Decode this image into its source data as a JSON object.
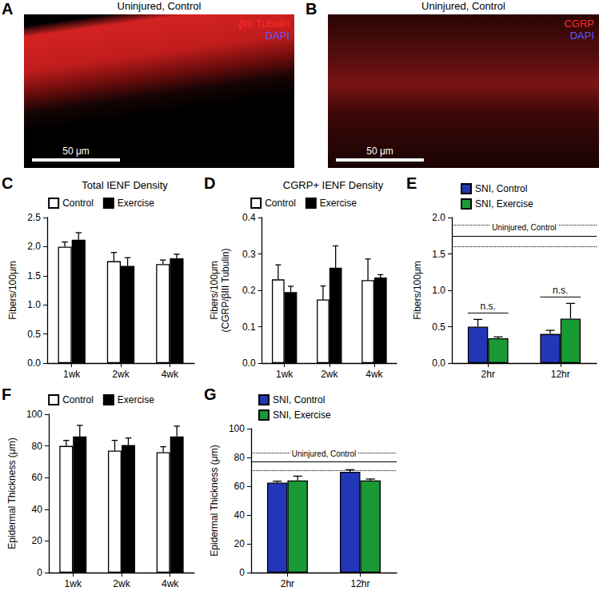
{
  "images": [
    {
      "panel": "A",
      "title": "Uninjured, Control",
      "channels": [
        {
          "label": "βIII Tubulin",
          "color": "#ff2a2a"
        },
        {
          "label": "DAPI",
          "color": "#5a5aff"
        }
      ],
      "scale_bar": "50 μm"
    },
    {
      "panel": "B",
      "title": "Uninjured, Control",
      "channels": [
        {
          "label": "CGRP",
          "color": "#ff2a2a"
        },
        {
          "label": "DAPI",
          "color": "#5a5aff"
        }
      ],
      "scale_bar": "50 μm"
    }
  ],
  "chart_data": [
    {
      "panel": "C",
      "type": "bar",
      "title": "Total IENF Density",
      "ylabel": "Fibers/100μm",
      "categories": [
        "1wk",
        "2wk",
        "4wk"
      ],
      "series": [
        {
          "name": "Control",
          "color": "#ffffff",
          "values": [
            2.0,
            1.75,
            1.7
          ],
          "errors": [
            0.08,
            0.15,
            0.07
          ]
        },
        {
          "name": "Exercise",
          "color": "#000000",
          "values": [
            2.12,
            1.67,
            1.8
          ],
          "errors": [
            0.12,
            0.14,
            0.07
          ]
        }
      ],
      "ylim": [
        0,
        2.5
      ],
      "yticks": [
        {
          "value": 0,
          "label": "0.0"
        },
        0.5,
        {
          "value": 1,
          "label": "1.0"
        },
        1.5,
        {
          "value": 2,
          "label": "2.0"
        },
        2.5
      ],
      "grid": false,
      "legend": "top"
    },
    {
      "panel": "D",
      "type": "bar",
      "title": "CGRP+ IENF Density",
      "ylabel": [
        "Fibers/100μm",
        "(CGRP/βIII Tubulin)"
      ],
      "categories": [
        "1wk",
        "2wk",
        "4wk"
      ],
      "series": [
        {
          "name": "Control",
          "color": "#ffffff",
          "values": [
            0.23,
            0.175,
            0.228
          ],
          "errors": [
            0.04,
            0.037,
            0.058
          ]
        },
        {
          "name": "Exercise",
          "color": "#000000",
          "values": [
            0.195,
            0.262,
            0.235
          ],
          "errors": [
            0.016,
            0.06,
            0.008
          ]
        }
      ],
      "ylim": [
        0,
        0.4
      ],
      "yticks": [
        {
          "value": 0,
          "label": "0.0"
        },
        0.1,
        0.2,
        0.3,
        0.4
      ],
      "grid": false,
      "legend": "top"
    },
    {
      "panel": "E",
      "type": "bar",
      "ylabel": "Fibers/100μm",
      "categories": [
        "2hr",
        "12hr"
      ],
      "series": [
        {
          "name": "SNI, Control",
          "color": "#2236b8",
          "values": [
            0.5,
            0.4
          ],
          "errors": [
            0.1,
            0.05
          ]
        },
        {
          "name": "SNI, Exercise",
          "color": "#1a9a34",
          "values": [
            0.34,
            0.61
          ],
          "errors": [
            0.02,
            0.21
          ]
        }
      ],
      "reference": {
        "label": "Uninjured, Control",
        "value": 1.75,
        "lower": 1.6,
        "upper": 1.9
      },
      "annotations": [
        {
          "category": "2hr",
          "text": "n.s."
        },
        {
          "category": "12hr",
          "text": "n.s."
        }
      ],
      "ylim": [
        0,
        2.0
      ],
      "yticks": [
        {
          "value": 0,
          "label": "0.0"
        },
        0.5,
        {
          "value": 1,
          "label": "1.0"
        },
        1.5,
        {
          "value": 2,
          "label": "2.0"
        }
      ],
      "grid": false,
      "legend": "top left"
    },
    {
      "panel": "F",
      "type": "bar",
      "ylabel": "Epidermal Thickness (μm)",
      "categories": [
        "1wk",
        "2wk",
        "4wk"
      ],
      "series": [
        {
          "name": "Control",
          "color": "#ffffff",
          "values": [
            80,
            77,
            76
          ],
          "errors": [
            3.5,
            6.5,
            3.5
          ]
        },
        {
          "name": "Exercise",
          "color": "#000000",
          "values": [
            86,
            80.5,
            86
          ],
          "errors": [
            7,
            4.5,
            6.5
          ]
        }
      ],
      "ylim": [
        0,
        100
      ],
      "yticks": [
        0,
        20,
        40,
        60,
        80,
        100
      ],
      "grid": false,
      "legend": "top"
    },
    {
      "panel": "G",
      "type": "bar",
      "ylabel": "Epidermal Thickness (μm)",
      "categories": [
        "2hr",
        "12hr"
      ],
      "series": [
        {
          "name": "SNI, Control",
          "color": "#2236b8",
          "values": [
            62.5,
            70
          ],
          "errors": [
            1,
            1.5
          ]
        },
        {
          "name": "SNI, Exercise",
          "color": "#1a9a34",
          "values": [
            64,
            64
          ],
          "errors": [
            3,
            1
          ]
        }
      ],
      "reference": {
        "label": "Uninjured, Control",
        "value": 77,
        "lower": 71,
        "upper": 83
      },
      "ylim": [
        0,
        100
      ],
      "yticks": [
        0,
        20,
        40,
        60,
        80,
        100
      ],
      "grid": false,
      "legend": "top left"
    }
  ]
}
